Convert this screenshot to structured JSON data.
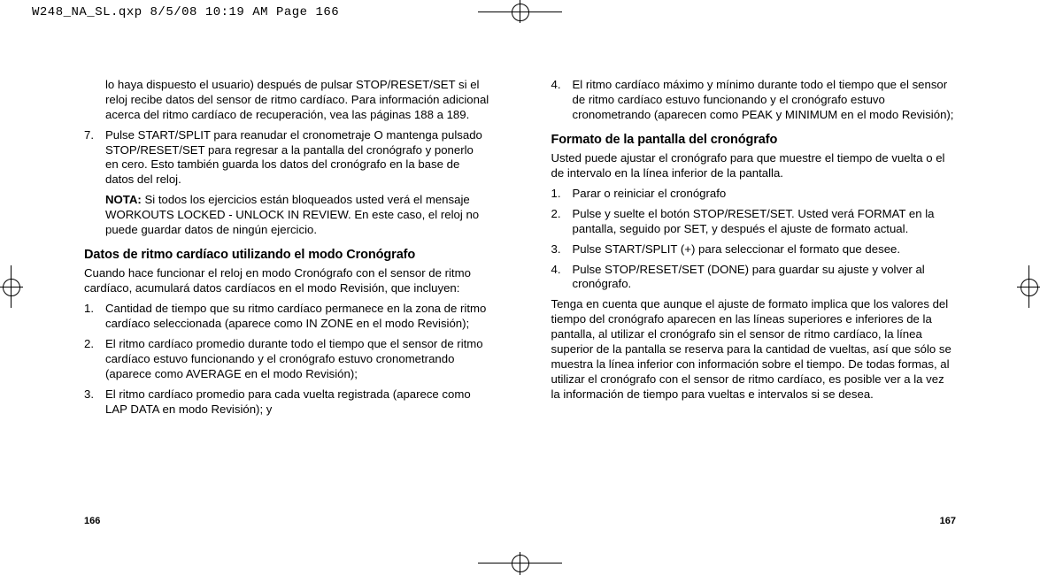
{
  "header": "W248_NA_SL.qxp  8/5/08  10:19 AM  Page 166",
  "left": {
    "p1": "lo haya dispuesto el usuario) después de pulsar STOP/RESET/SET si el reloj recibe datos del sensor de ritmo cardíaco. Para información adicional acerca del ritmo cardíaco de recuperación, vea las páginas 188 a 189.",
    "li7": "Pulse START/SPLIT para reanudar el cronometraje O mantenga pulsado STOP/RESET/SET para regresar a la pantalla del cronógrafo y ponerlo en cero. Esto también guarda los datos del cronógrafo en la base de datos del reloj.",
    "notaLabel": "NOTA:",
    "notaText": " Si todos los ejercicios están bloqueados usted verá el mensaje WORKOUTS LOCKED - UNLOCK IN REVIEW. En este caso, el reloj no puede guardar datos de ningún ejercicio.",
    "h1": "Datos de ritmo cardíaco utilizando el modo Cronógrafo",
    "p2": "Cuando hace funcionar el reloj en modo Cronógrafo con el sensor de ritmo cardíaco, acumulará datos cardíacos en el modo Revisión, que incluyen:",
    "d1": "Cantidad de tiempo que su ritmo cardíaco permanece en la zona de ritmo cardíaco seleccionada (aparece como IN ZONE en el modo Revisión);",
    "d2": "El ritmo cardíaco promedio durante todo el tiempo que el sensor de ritmo cardíaco estuvo funcionando y el cronógrafo estuvo cronometrando (aparece como AVERAGE en el modo Revisión);",
    "d3": "El ritmo cardíaco promedio para cada vuelta registrada (aparece como LAP DATA en modo Revisión); y",
    "pageNum": "166"
  },
  "right": {
    "d4": "El ritmo cardíaco máximo y mínimo durante todo el tiempo que el sensor de ritmo cardíaco estuvo funcionando y el cronógrafo estuvo cronometrando (aparecen como PEAK y MINIMUM en el modo Revisión);",
    "h2": "Formato de la pantalla del cronógrafo",
    "p3": "Usted puede ajustar el cronógrafo para que muestre el tiempo de vuelta o el de intervalo en la línea inferior de la pantalla.",
    "s1": "Parar o reiniciar el cronógrafo",
    "s2": "Pulse y suelte el botón STOP/RESET/SET. Usted verá FORMAT en la pantalla, seguido por SET, y después el ajuste de formato actual.",
    "s3": "Pulse START/SPLIT (+) para seleccionar el formato que desee.",
    "s4": "Pulse STOP/RESET/SET (DONE) para guardar su ajuste y volver al cronógrafo.",
    "p4": "Tenga en cuenta que aunque el ajuste de formato implica que los valores del tiempo del cronógrafo aparecen en las líneas superiores e inferiores de la pantalla, al utilizar el cronógrafo sin el sensor de ritmo cardíaco, la línea superior de la pantalla se reserva para la cantidad de vueltas, así que sólo se muestra la línea inferior con información sobre el tiempo. De todas formas, al utilizar el cronógrafo con el sensor de ritmo cardíaco, es posible ver a la vez la información de tiempo para vueltas e intervalos si se desea.",
    "pageNum": "167"
  }
}
